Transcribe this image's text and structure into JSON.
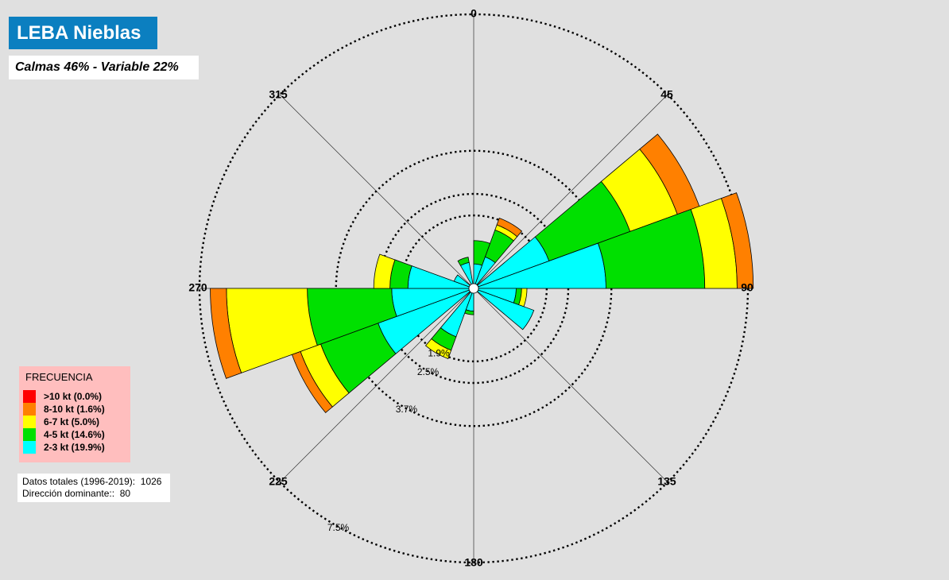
{
  "title": "LEBA Nieblas",
  "subtitle": "Calmas 46% - Variable 22%",
  "legend": {
    "title": "FRECUENCIA",
    "items": [
      {
        "label": ">10 kt (0.0%)",
        "color": "#ff0000"
      },
      {
        "label": "8-10 kt (1.6%)",
        "color": "#ff8000"
      },
      {
        "label": "6-7 kt (5.0%)",
        "color": "#ffff00"
      },
      {
        "label": "4-5 kt (14.6%)",
        "color": "#00e000"
      },
      {
        "label": "2-3 kt (19.9%)",
        "color": "#00ffff"
      }
    ]
  },
  "info": {
    "total_label": "Datos totales (1996-2019):",
    "total_value": "1026",
    "dominant_label": "Dirección dominante::",
    "dominant_value": "80"
  },
  "chart_data": {
    "type": "wind-rose",
    "title": "LEBA Nieblas",
    "subtitle": "Calmas 46% - Variable 22%",
    "direction_labels": [
      "0",
      "45",
      "90",
      "135",
      "180",
      "225",
      "270",
      "315"
    ],
    "ring_labels": [
      "1.9%",
      "2.5%",
      "3.7%",
      "7.5%"
    ],
    "ring_values": [
      1.9,
      2.5,
      3.7,
      7.5
    ],
    "bands": [
      "2-3 kt",
      "4-5 kt",
      "6-7 kt",
      "8-10 kt"
    ],
    "band_colors": [
      "#00ffff",
      "#00e000",
      "#ffff00",
      "#ff8000"
    ],
    "sectors": [
      {
        "dir": 10,
        "cum": [
          0.55,
          1.2,
          1.2,
          1.2
        ]
      },
      {
        "dir": 30,
        "cum": [
          0.8,
          1.6,
          1.75,
          1.95
        ]
      },
      {
        "dir": 60,
        "cum": [
          2.1,
          4.5,
          5.9,
          6.55
        ]
      },
      {
        "dir": 80,
        "cum": [
          3.55,
          6.3,
          7.2,
          7.65
        ]
      },
      {
        "dir": 100,
        "cum": [
          1.05,
          1.2,
          1.35,
          1.35
        ]
      },
      {
        "dir": 120,
        "cum": [
          1.65,
          1.65,
          1.65,
          1.65
        ]
      },
      {
        "dir": 190,
        "cum": [
          0.5,
          0.6,
          0.6,
          0.6
        ]
      },
      {
        "dir": 210,
        "cum": [
          1.3,
          1.7,
          1.95,
          1.95
        ]
      },
      {
        "dir": 240,
        "cum": [
          2.7,
          4.4,
          5.0,
          5.25
        ]
      },
      {
        "dir": 260,
        "cum": [
          2.15,
          4.5,
          6.75,
          7.2
        ]
      },
      {
        "dir": 280,
        "cum": [
          1.7,
          2.2,
          2.65,
          2.65
        ]
      },
      {
        "dir": 300,
        "cum": [
          0.45,
          0.45,
          0.45,
          0.45
        ]
      },
      {
        "dir": 340,
        "cum": [
          0.6,
          0.75,
          0.75,
          0.75
        ]
      }
    ]
  }
}
